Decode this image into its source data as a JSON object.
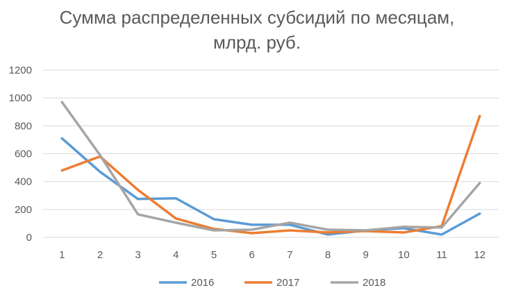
{
  "chart_data": {
    "type": "line",
    "title_lines": [
      "Сумма распределенных субсидий по месяцам,",
      "млрд. руб."
    ],
    "categories": [
      "1",
      "2",
      "3",
      "4",
      "5",
      "6",
      "7",
      "8",
      "9",
      "10",
      "11",
      "12"
    ],
    "y_ticks": [
      "0",
      "200",
      "400",
      "600",
      "800",
      "1000",
      "1200"
    ],
    "ylim": [
      0,
      1200
    ],
    "grid": true,
    "legend_position": "bottom",
    "series": [
      {
        "name": "2016",
        "color": "#5b9bd5",
        "values": [
          710,
          470,
          275,
          280,
          130,
          90,
          90,
          20,
          50,
          65,
          20,
          170
        ]
      },
      {
        "name": "2017",
        "color": "#ed7d31",
        "values": [
          480,
          580,
          340,
          135,
          60,
          30,
          50,
          35,
          45,
          35,
          80,
          870
        ]
      },
      {
        "name": "2018",
        "color": "#a5a5a5",
        "values": [
          970,
          590,
          165,
          105,
          50,
          55,
          105,
          55,
          50,
          75,
          70,
          390
        ]
      }
    ]
  }
}
